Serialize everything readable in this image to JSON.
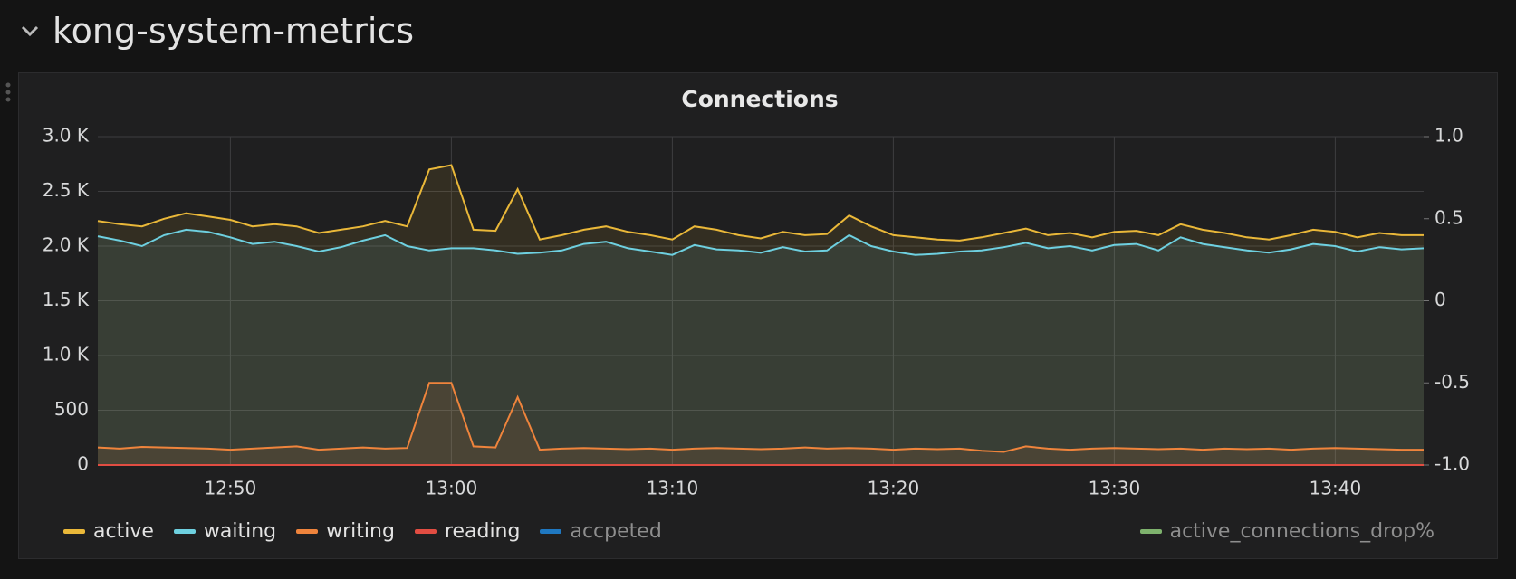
{
  "header": {
    "title": "kong-system-metrics"
  },
  "chart_data": {
    "type": "line",
    "title": "Connections",
    "x": [
      "12:44",
      "12:45",
      "12:46",
      "12:47",
      "12:48",
      "12:49",
      "12:50",
      "12:51",
      "12:52",
      "12:53",
      "12:54",
      "12:55",
      "12:56",
      "12:57",
      "12:58",
      "12:59",
      "13:00",
      "13:01",
      "13:02",
      "13:03",
      "13:04",
      "13:05",
      "13:06",
      "13:07",
      "13:08",
      "13:09",
      "13:10",
      "13:11",
      "13:12",
      "13:13",
      "13:14",
      "13:15",
      "13:16",
      "13:17",
      "13:18",
      "13:19",
      "13:20",
      "13:21",
      "13:22",
      "13:23",
      "13:24",
      "13:25",
      "13:26",
      "13:27",
      "13:28",
      "13:29",
      "13:30",
      "13:31",
      "13:32",
      "13:33",
      "13:34",
      "13:35",
      "13:36",
      "13:37",
      "13:38",
      "13:39",
      "13:40",
      "13:41",
      "13:42",
      "13:43",
      "13:44"
    ],
    "xlim": [
      "12:44",
      "13:44"
    ],
    "xticks": [
      "12:50",
      "13:00",
      "13:10",
      "13:20",
      "13:30",
      "13:40"
    ],
    "ylim": [
      0,
      3000
    ],
    "yticks": [
      0,
      500,
      {
        "value": 1000,
        "label": "1.0 K"
      },
      {
        "value": 1500,
        "label": "1.5 K"
      },
      {
        "value": 2000,
        "label": "2.0 K"
      },
      {
        "value": 2500,
        "label": "2.5 K"
      },
      {
        "value": 3000,
        "label": "3.0 K"
      }
    ],
    "y2lim": [
      -1,
      1
    ],
    "y2ticks": [
      {
        "value": -1,
        "label": "-1.0"
      },
      -0.5,
      0,
      0.5,
      {
        "value": 1,
        "label": "1.0"
      }
    ],
    "grid": true,
    "series": [
      {
        "name": "active",
        "color": "#eab839",
        "values": [
          2230,
          2200,
          2180,
          2250,
          2300,
          2270,
          2240,
          2180,
          2200,
          2180,
          2120,
          2150,
          2180,
          2230,
          2180,
          2700,
          2740,
          2150,
          2140,
          2520,
          2060,
          2100,
          2150,
          2180,
          2130,
          2100,
          2060,
          2180,
          2150,
          2100,
          2070,
          2130,
          2100,
          2110,
          2280,
          2180,
          2100,
          2080,
          2060,
          2050,
          2080,
          2120,
          2160,
          2100,
          2120,
          2080,
          2130,
          2140,
          2100,
          2200,
          2150,
          2120,
          2080,
          2060,
          2100,
          2150,
          2130,
          2080,
          2120,
          2100,
          2100
        ]
      },
      {
        "name": "waiting",
        "color": "#6ed0e0",
        "values": [
          2090,
          2050,
          2000,
          2100,
          2150,
          2130,
          2080,
          2020,
          2040,
          2000,
          1950,
          1990,
          2050,
          2100,
          2000,
          1960,
          1980,
          1980,
          1960,
          1930,
          1940,
          1960,
          2020,
          2040,
          1980,
          1950,
          1920,
          2010,
          1970,
          1960,
          1940,
          1990,
          1950,
          1960,
          2100,
          2000,
          1950,
          1920,
          1930,
          1950,
          1960,
          1990,
          2030,
          1980,
          2000,
          1960,
          2010,
          2020,
          1960,
          2080,
          2020,
          1990,
          1960,
          1940,
          1970,
          2020,
          2000,
          1950,
          1990,
          1970,
          1980
        ]
      },
      {
        "name": "writing",
        "color": "#ef843c",
        "values": [
          160,
          150,
          165,
          160,
          155,
          150,
          140,
          150,
          160,
          170,
          140,
          150,
          160,
          150,
          155,
          750,
          750,
          170,
          160,
          620,
          140,
          150,
          155,
          150,
          145,
          150,
          140,
          150,
          155,
          150,
          145,
          150,
          160,
          150,
          155,
          150,
          140,
          150,
          145,
          150,
          130,
          120,
          170,
          150,
          140,
          150,
          155,
          150,
          145,
          150,
          140,
          150,
          145,
          150,
          140,
          150,
          155,
          150,
          145,
          140,
          140
        ]
      },
      {
        "name": "reading",
        "color": "#e24d42",
        "values": [
          0,
          0,
          0,
          0,
          0,
          0,
          0,
          0,
          0,
          0,
          0,
          0,
          0,
          0,
          0,
          0,
          0,
          0,
          0,
          0,
          0,
          0,
          0,
          0,
          0,
          0,
          0,
          0,
          0,
          0,
          0,
          0,
          0,
          0,
          0,
          0,
          0,
          0,
          0,
          0,
          0,
          0,
          0,
          0,
          0,
          0,
          0,
          0,
          0,
          0,
          0,
          0,
          0,
          0,
          0,
          0,
          0,
          0,
          0,
          0,
          0
        ]
      },
      {
        "name": "accpeted",
        "color": "#1f78c1",
        "hidden": true,
        "values": [
          null,
          null,
          null,
          null,
          null,
          null,
          null,
          null,
          null,
          null,
          null,
          null,
          null,
          null,
          null,
          null,
          null,
          null,
          null,
          null,
          null,
          null,
          null,
          null,
          null,
          null,
          null,
          null,
          null,
          null,
          null,
          null,
          null,
          null,
          null,
          null,
          null,
          null,
          null,
          null,
          null,
          null,
          null,
          null,
          null,
          null,
          null,
          null,
          null,
          null,
          null,
          null,
          null,
          null,
          null,
          null,
          null,
          null,
          null,
          null,
          null
        ]
      },
      {
        "name": "active_connections_drop%",
        "color": "#7eb26d",
        "axis": "y2",
        "hidden": true,
        "values": [
          null,
          null,
          null,
          null,
          null,
          null,
          null,
          null,
          null,
          null,
          null,
          null,
          null,
          null,
          null,
          null,
          null,
          null,
          null,
          null,
          null,
          null,
          null,
          null,
          null,
          null,
          null,
          null,
          null,
          null,
          null,
          null,
          null,
          null,
          null,
          null,
          null,
          null,
          null,
          null,
          null,
          null,
          null,
          null,
          null,
          null,
          null,
          null,
          null,
          null,
          null,
          null,
          null,
          null,
          null,
          null,
          null,
          null,
          null,
          null,
          null
        ]
      }
    ]
  }
}
